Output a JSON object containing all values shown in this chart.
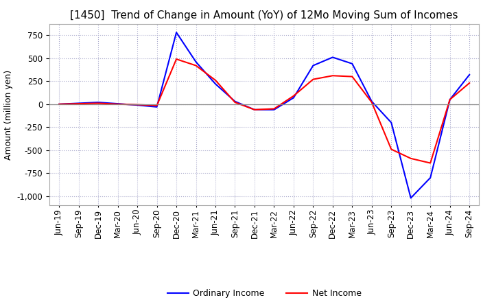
{
  "title": "[1450]  Trend of Change in Amount (YoY) of 12Mo Moving Sum of Incomes",
  "ylabel": "Amount (million yen)",
  "ylim": [
    -1100,
    870
  ],
  "yticks": [
    -1000,
    -750,
    -500,
    -250,
    0,
    250,
    500,
    750
  ],
  "legend_labels": [
    "Ordinary Income",
    "Net Income"
  ],
  "line_colors": [
    "blue",
    "red"
  ],
  "x_labels": [
    "Jun-19",
    "Sep-19",
    "Dec-19",
    "Mar-20",
    "Jun-20",
    "Sep-20",
    "Dec-20",
    "Mar-21",
    "Jun-21",
    "Sep-21",
    "Dec-21",
    "Mar-22",
    "Jun-22",
    "Sep-22",
    "Dec-22",
    "Mar-23",
    "Jun-23",
    "Sep-23",
    "Dec-23",
    "Mar-24",
    "Jun-24",
    "Sep-24"
  ],
  "ordinary_income": [
    0,
    10,
    20,
    5,
    -10,
    -30,
    780,
    460,
    220,
    30,
    -60,
    -60,
    70,
    420,
    510,
    440,
    30,
    -200,
    -1020,
    -800,
    50,
    320
  ],
  "net_income": [
    0,
    5,
    10,
    0,
    -5,
    -15,
    490,
    420,
    260,
    20,
    -60,
    -50,
    90,
    270,
    310,
    300,
    20,
    -490,
    -590,
    -640,
    50,
    230
  ],
  "background_color": "#ffffff",
  "grid_color": "#aaaacc",
  "title_fontsize": 11,
  "axis_fontsize": 9,
  "tick_fontsize": 8.5
}
